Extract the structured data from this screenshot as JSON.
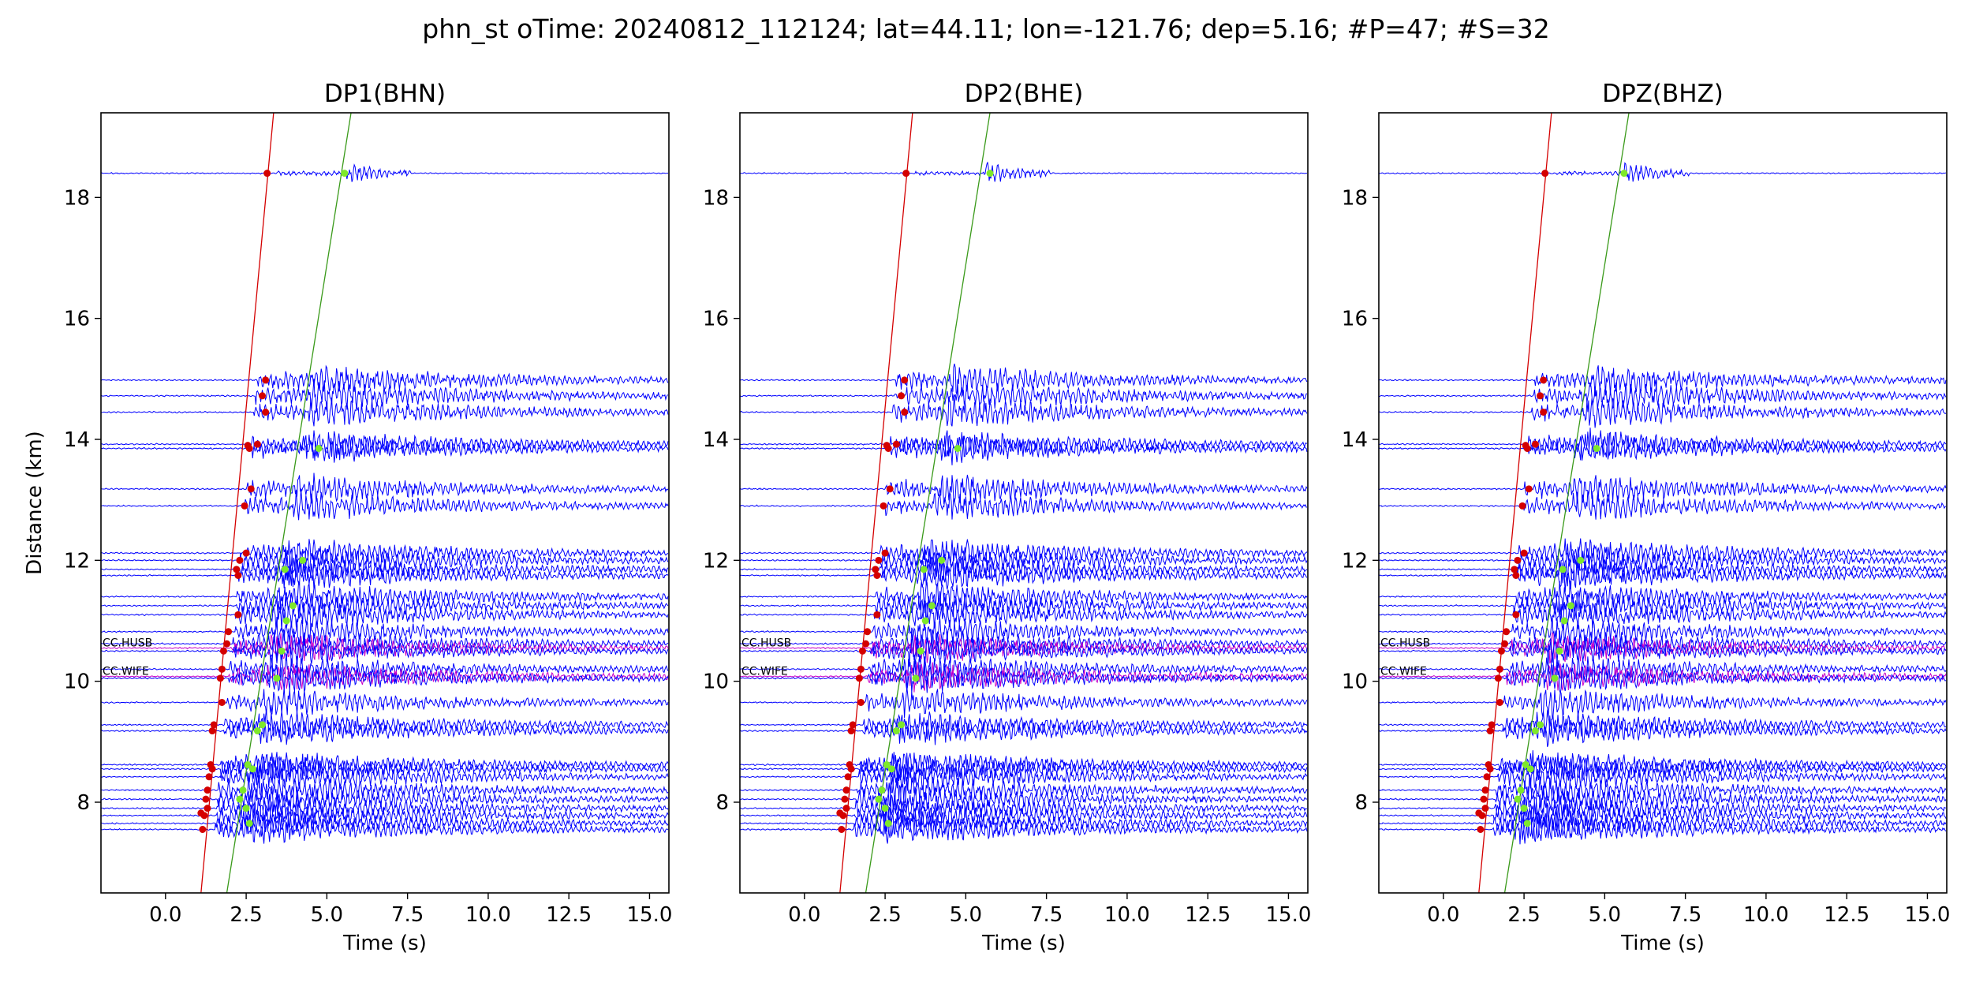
{
  "suptitle": "phn_st oTime: 20240812_112124; lat=44.11; lon=-121.76; dep=5.16; #P=47; #S=32",
  "colors": {
    "trace": "#0000ff",
    "highlight_trace": "#c800c8",
    "p_pick": "#d40000",
    "s_pick": "#7ee82a",
    "p_moveout": "#d40000",
    "s_moveout": "#3a9a1a"
  },
  "chart_data": [
    {
      "type": "line",
      "title": "DP1(BHN)",
      "xlabel": "Time (s)",
      "ylabel": "Distance (km)",
      "xlim": [
        -2.0,
        15.6
      ],
      "ylim": [
        6.5,
        19.4
      ],
      "xticks": [
        "0.0",
        "2.5",
        "5.0",
        "7.5",
        "10.0",
        "12.5",
        "15.0"
      ],
      "yticks": [
        "8",
        "10",
        "12",
        "14",
        "16",
        "18"
      ],
      "grid": false,
      "station_labels": [
        {
          "text": "CC.HUSB",
          "distance_km": 10.55
        },
        {
          "text": "CC.WIFE",
          "distance_km": 10.08
        }
      ],
      "p_moveout_line": {
        "time_s": [
          1.1,
          3.35
        ],
        "distance_km": [
          6.5,
          19.4
        ]
      },
      "s_moveout_line": {
        "time_s": [
          1.9,
          5.75
        ],
        "distance_km": [
          6.5,
          19.4
        ]
      },
      "p_picks": [
        [
          3.15,
          18.4
        ],
        [
          3.1,
          14.98
        ],
        [
          3.0,
          14.72
        ],
        [
          3.1,
          14.45
        ],
        [
          2.85,
          13.92
        ],
        [
          2.6,
          13.85
        ],
        [
          2.55,
          13.9
        ],
        [
          2.65,
          13.18
        ],
        [
          2.45,
          12.9
        ],
        [
          2.5,
          12.12
        ],
        [
          2.3,
          12.0
        ],
        [
          2.2,
          11.85
        ],
        [
          2.25,
          11.75
        ],
        [
          2.25,
          11.1
        ],
        [
          1.95,
          10.82
        ],
        [
          1.9,
          10.62
        ],
        [
          1.8,
          10.5
        ],
        [
          1.75,
          10.2
        ],
        [
          1.7,
          10.05
        ],
        [
          1.75,
          9.65
        ],
        [
          1.5,
          9.28
        ],
        [
          1.45,
          9.18
        ],
        [
          1.4,
          8.62
        ],
        [
          1.45,
          8.55
        ],
        [
          1.35,
          8.42
        ],
        [
          1.3,
          8.2
        ],
        [
          1.25,
          8.05
        ],
        [
          1.3,
          7.9
        ],
        [
          1.1,
          7.82
        ],
        [
          1.2,
          7.78
        ],
        [
          1.15,
          7.55
        ]
      ],
      "s_picks": [
        [
          5.55,
          18.4
        ],
        [
          4.75,
          13.85
        ],
        [
          4.25,
          12.0
        ],
        [
          3.7,
          11.85
        ],
        [
          3.95,
          11.25
        ],
        [
          3.75,
          11.0
        ],
        [
          3.6,
          10.5
        ],
        [
          3.45,
          10.05
        ],
        [
          2.85,
          9.18
        ],
        [
          3.0,
          9.28
        ],
        [
          2.55,
          8.62
        ],
        [
          2.7,
          8.55
        ],
        [
          2.4,
          8.2
        ],
        [
          2.3,
          8.05
        ],
        [
          2.5,
          7.9
        ],
        [
          2.6,
          7.65
        ]
      ]
    },
    {
      "type": "line",
      "title": "DP2(BHE)",
      "xlabel": "Time (s)",
      "ylabel": "",
      "xlim": [
        -2.0,
        15.6
      ],
      "ylim": [
        6.5,
        19.4
      ],
      "xticks": [
        "0.0",
        "2.5",
        "5.0",
        "7.5",
        "10.0",
        "12.5",
        "15.0"
      ],
      "yticks": [
        "8",
        "10",
        "12",
        "14",
        "16",
        "18"
      ],
      "grid": false,
      "station_labels": [
        {
          "text": "CC.HUSB",
          "distance_km": 10.55
        },
        {
          "text": "CC.WIFE",
          "distance_km": 10.08
        }
      ],
      "p_moveout_line": {
        "time_s": [
          1.1,
          3.35
        ],
        "distance_km": [
          6.5,
          19.4
        ]
      },
      "s_moveout_line": {
        "time_s": [
          1.9,
          5.75
        ],
        "distance_km": [
          6.5,
          19.4
        ]
      },
      "p_picks": [
        [
          3.15,
          18.4
        ],
        [
          3.1,
          14.98
        ],
        [
          3.0,
          14.72
        ],
        [
          3.1,
          14.45
        ],
        [
          2.85,
          13.92
        ],
        [
          2.6,
          13.85
        ],
        [
          2.55,
          13.9
        ],
        [
          2.65,
          13.18
        ],
        [
          2.45,
          12.9
        ],
        [
          2.5,
          12.12
        ],
        [
          2.3,
          12.0
        ],
        [
          2.2,
          11.85
        ],
        [
          2.25,
          11.75
        ],
        [
          2.25,
          11.1
        ],
        [
          1.95,
          10.82
        ],
        [
          1.9,
          10.62
        ],
        [
          1.8,
          10.5
        ],
        [
          1.75,
          10.2
        ],
        [
          1.7,
          10.05
        ],
        [
          1.75,
          9.65
        ],
        [
          1.5,
          9.28
        ],
        [
          1.45,
          9.18
        ],
        [
          1.4,
          8.62
        ],
        [
          1.45,
          8.55
        ],
        [
          1.35,
          8.42
        ],
        [
          1.3,
          8.2
        ],
        [
          1.25,
          8.05
        ],
        [
          1.3,
          7.9
        ],
        [
          1.1,
          7.82
        ],
        [
          1.2,
          7.78
        ],
        [
          1.15,
          7.55
        ]
      ],
      "s_picks": [
        [
          5.75,
          18.4
        ],
        [
          4.75,
          13.85
        ],
        [
          4.25,
          12.0
        ],
        [
          3.7,
          11.85
        ],
        [
          3.95,
          11.25
        ],
        [
          3.75,
          11.0
        ],
        [
          3.6,
          10.5
        ],
        [
          3.45,
          10.05
        ],
        [
          2.85,
          9.18
        ],
        [
          3.0,
          9.28
        ],
        [
          2.55,
          8.62
        ],
        [
          2.7,
          8.55
        ],
        [
          2.4,
          8.2
        ],
        [
          2.3,
          8.05
        ],
        [
          2.5,
          7.9
        ],
        [
          2.6,
          7.65
        ]
      ]
    },
    {
      "type": "line",
      "title": "DPZ(BHZ)",
      "xlabel": "Time (s)",
      "ylabel": "",
      "xlim": [
        -2.0,
        15.6
      ],
      "ylim": [
        6.5,
        19.4
      ],
      "xticks": [
        "0.0",
        "2.5",
        "5.0",
        "7.5",
        "10.0",
        "12.5",
        "15.0"
      ],
      "yticks": [
        "8",
        "10",
        "12",
        "14",
        "16",
        "18"
      ],
      "grid": false,
      "station_labels": [
        {
          "text": "CC.HUSB",
          "distance_km": 10.55
        },
        {
          "text": "CC.WIFE",
          "distance_km": 10.08
        }
      ],
      "p_moveout_line": {
        "time_s": [
          1.1,
          3.35
        ],
        "distance_km": [
          6.5,
          19.4
        ]
      },
      "s_moveout_line": {
        "time_s": [
          1.9,
          5.75
        ],
        "distance_km": [
          6.5,
          19.4
        ]
      },
      "p_picks": [
        [
          3.15,
          18.4
        ],
        [
          3.1,
          14.98
        ],
        [
          3.0,
          14.72
        ],
        [
          3.1,
          14.45
        ],
        [
          2.85,
          13.92
        ],
        [
          2.6,
          13.85
        ],
        [
          2.55,
          13.9
        ],
        [
          2.65,
          13.18
        ],
        [
          2.45,
          12.9
        ],
        [
          2.5,
          12.12
        ],
        [
          2.3,
          12.0
        ],
        [
          2.2,
          11.85
        ],
        [
          2.25,
          11.75
        ],
        [
          2.25,
          11.1
        ],
        [
          1.95,
          10.82
        ],
        [
          1.9,
          10.62
        ],
        [
          1.8,
          10.5
        ],
        [
          1.75,
          10.2
        ],
        [
          1.7,
          10.05
        ],
        [
          1.75,
          9.65
        ],
        [
          1.5,
          9.28
        ],
        [
          1.45,
          9.18
        ],
        [
          1.4,
          8.62
        ],
        [
          1.45,
          8.55
        ],
        [
          1.35,
          8.42
        ],
        [
          1.3,
          8.2
        ],
        [
          1.25,
          8.05
        ],
        [
          1.3,
          7.9
        ],
        [
          1.1,
          7.82
        ],
        [
          1.2,
          7.78
        ],
        [
          1.15,
          7.55
        ]
      ],
      "s_picks": [
        [
          5.6,
          18.4
        ],
        [
          4.75,
          13.85
        ],
        [
          4.25,
          12.0
        ],
        [
          3.7,
          11.85
        ],
        [
          3.95,
          11.25
        ],
        [
          3.75,
          11.0
        ],
        [
          3.6,
          10.5
        ],
        [
          3.45,
          10.05
        ],
        [
          2.85,
          9.18
        ],
        [
          3.0,
          9.28
        ],
        [
          2.55,
          8.62
        ],
        [
          2.7,
          8.55
        ],
        [
          2.4,
          8.2
        ],
        [
          2.3,
          8.05
        ],
        [
          2.5,
          7.9
        ],
        [
          2.6,
          7.65
        ]
      ]
    }
  ],
  "trace_distances_km": [
    18.4,
    14.98,
    14.72,
    14.45,
    13.92,
    13.85,
    13.18,
    12.9,
    12.12,
    12.0,
    11.85,
    11.75,
    11.4,
    11.25,
    11.1,
    10.82,
    10.62,
    10.55,
    10.5,
    10.2,
    10.08,
    10.05,
    9.65,
    9.28,
    9.18,
    8.62,
    8.55,
    8.42,
    8.2,
    8.05,
    7.9,
    7.78,
    7.65,
    7.55
  ],
  "highlight_traces_km": [
    10.55,
    10.08
  ]
}
